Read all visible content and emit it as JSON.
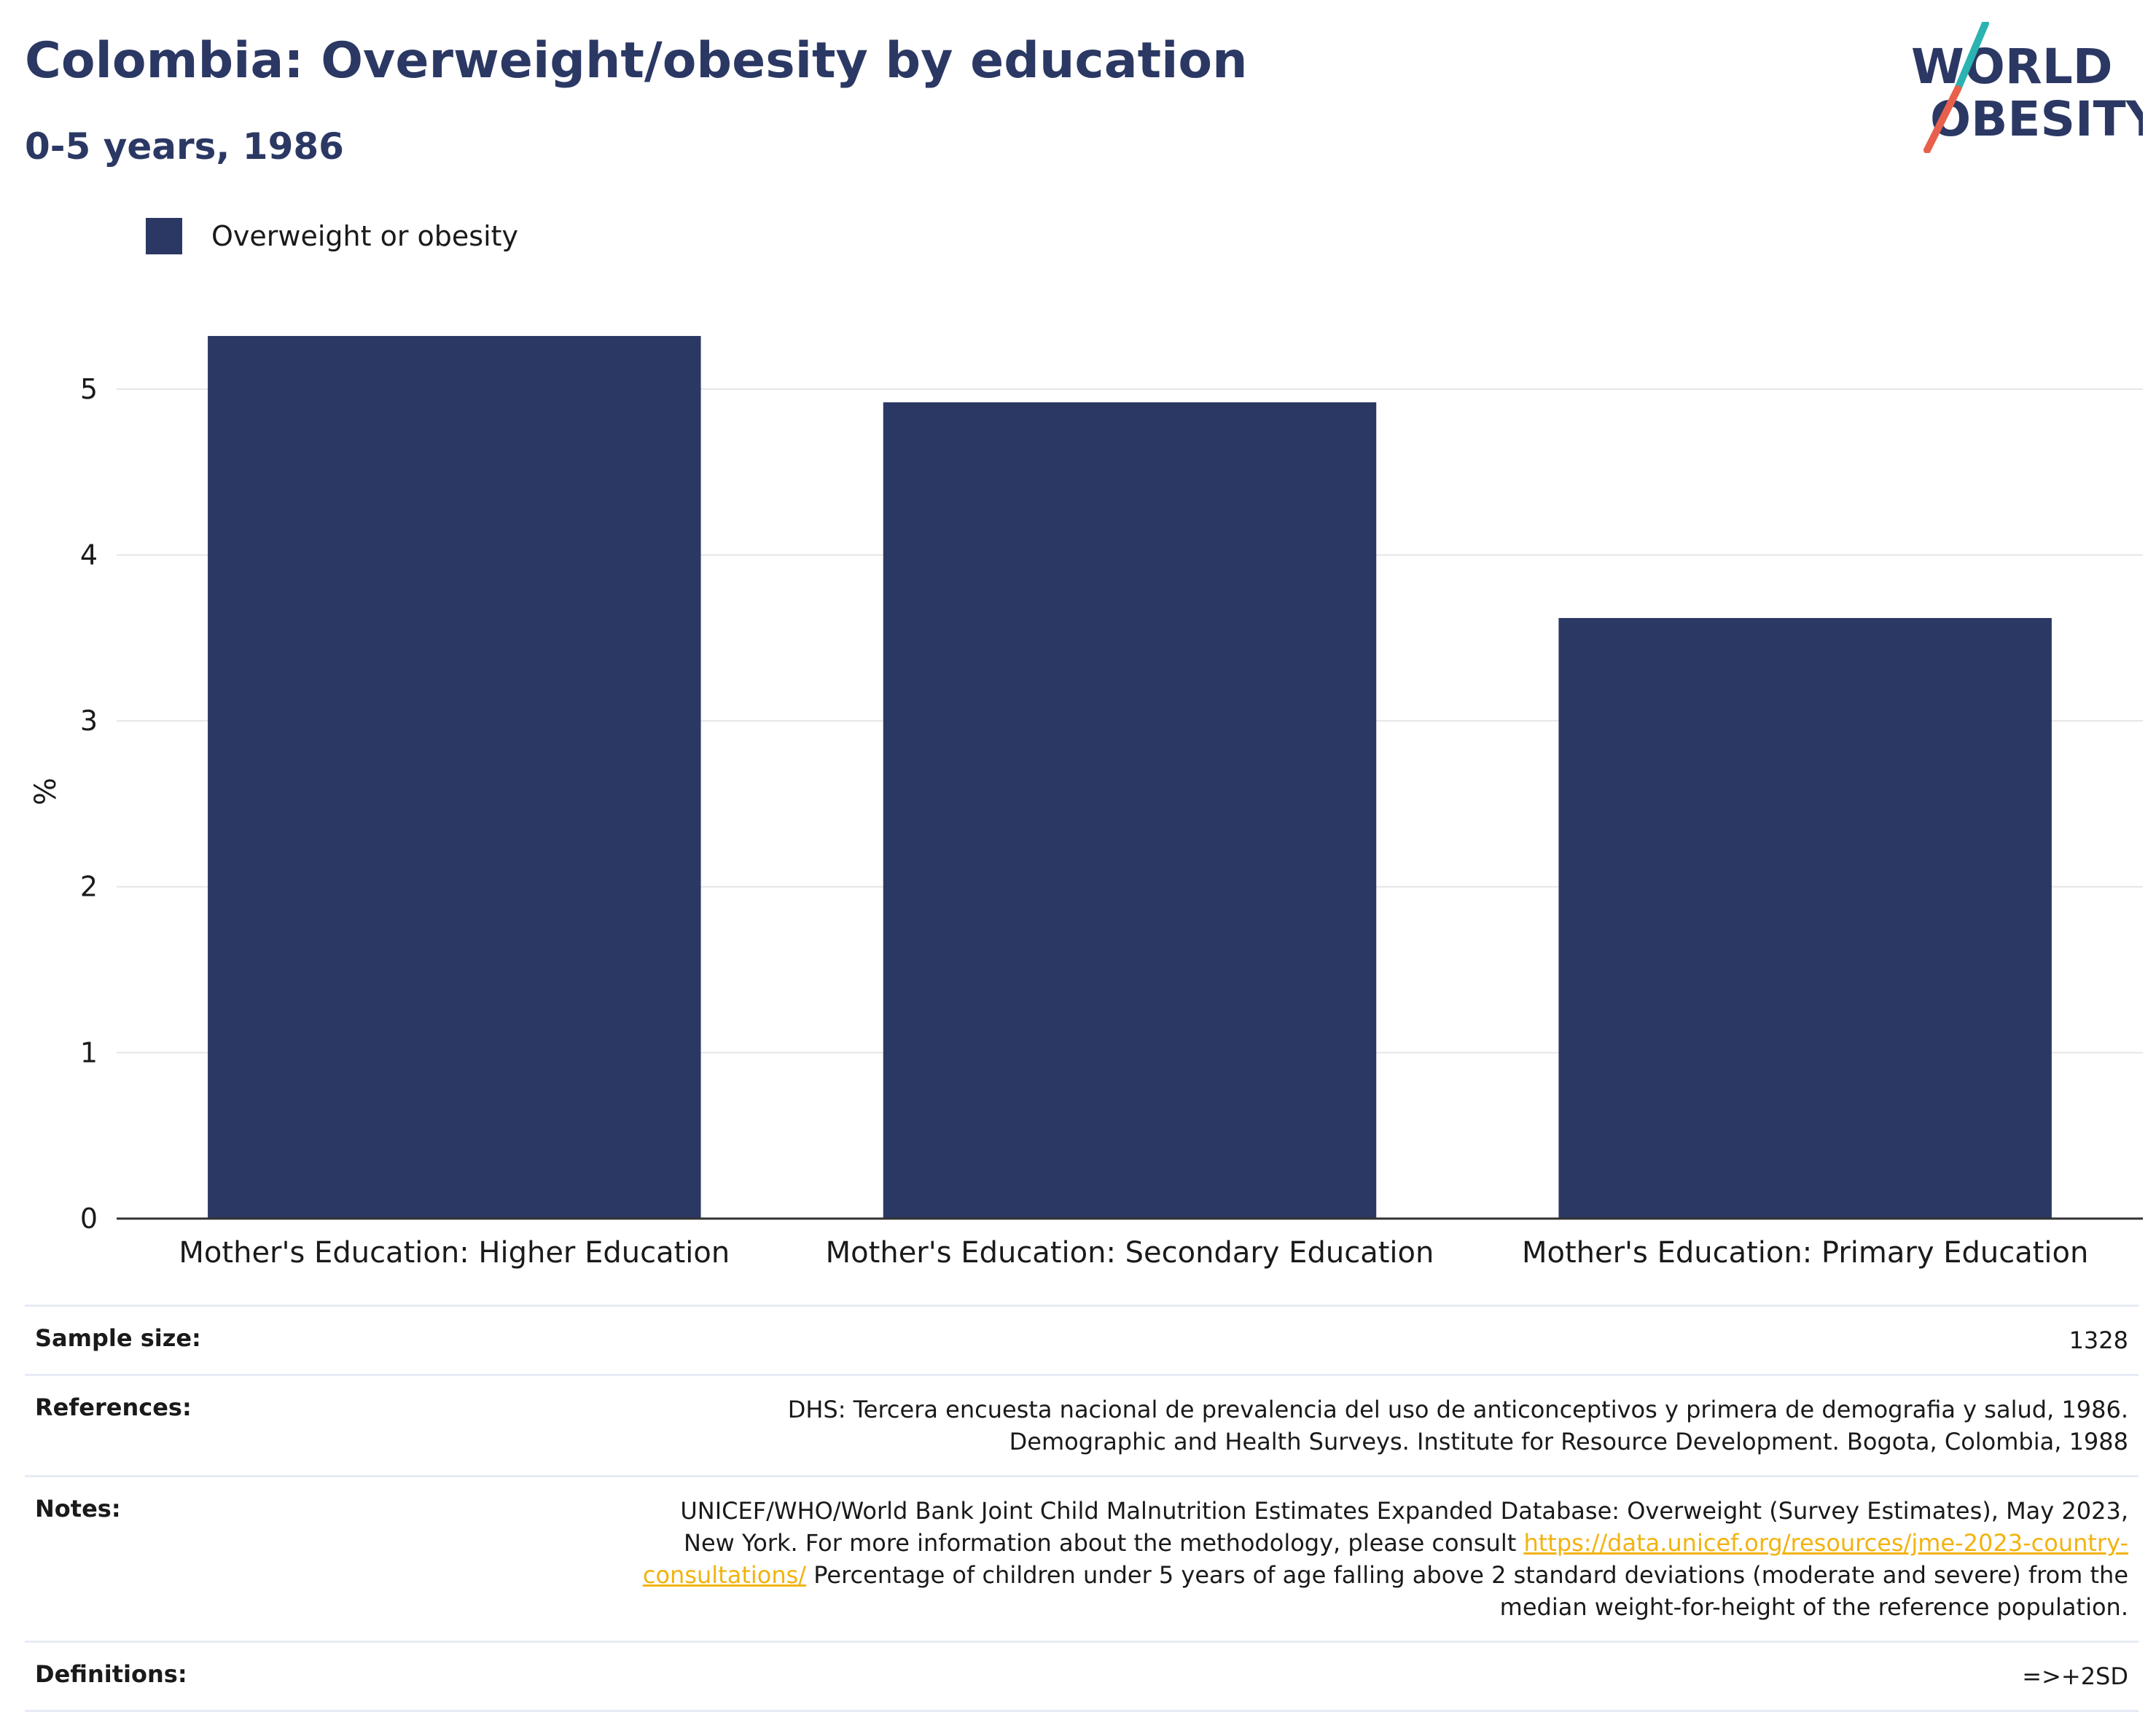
{
  "header": {
    "title": "Colombia: Overweight/obesity by education",
    "subtitle": "0-5 years, 1986"
  },
  "logo": {
    "line1": "WORLD",
    "line2": "OBESITY"
  },
  "colors": {
    "bar": "#2b3864",
    "grid": "#e6e6e6",
    "axis": "#333333",
    "link": "#f2b30f",
    "logo_teal": "#2bb3b1",
    "logo_red": "#e8604c"
  },
  "chart_data": {
    "type": "bar",
    "categories": [
      "Mother's Education: Higher Education",
      "Mother's Education: Secondary Education",
      "Mother's Education: Primary Education"
    ],
    "series": [
      {
        "name": "Overweight or obesity",
        "values": [
          5.32,
          4.92,
          3.62
        ]
      }
    ],
    "title": "Colombia: Overweight/obesity by education",
    "subtitle": "0-5 years, 1986",
    "xlabel": "",
    "ylabel": "%",
    "ylim": [
      0,
      5.5
    ],
    "yticks": [
      0,
      1,
      2,
      3,
      4,
      5
    ],
    "grid": true,
    "legend": "top-left"
  },
  "info": {
    "sample_size_label": "Sample size:",
    "sample_size_value": "1328",
    "references_label": "References:",
    "references_value": "DHS: Tercera encuesta nacional de prevalencia del uso de anticonceptivos y primera de demografia y salud, 1986. Demographic and Health Surveys. Institute for Resource Development. Bogota, Colombia, 1988",
    "notes_label": "Notes:",
    "notes_text_1": "UNICEF/WHO/World Bank Joint Child Malnutrition Estimates Expanded Database: Overweight (Survey Estimates), May 2023, New York. For more information about the methodology, please consult ",
    "notes_link": "https://data.unicef.org/resources/jme-2023-country-consultations/",
    "notes_text_2": " Percentage of children under 5 years of age falling above 2 standard deviations (moderate and severe) from the median weight-for-height of the reference population.",
    "definitions_label": "Definitions:",
    "definitions_value": "=>+2SD"
  }
}
